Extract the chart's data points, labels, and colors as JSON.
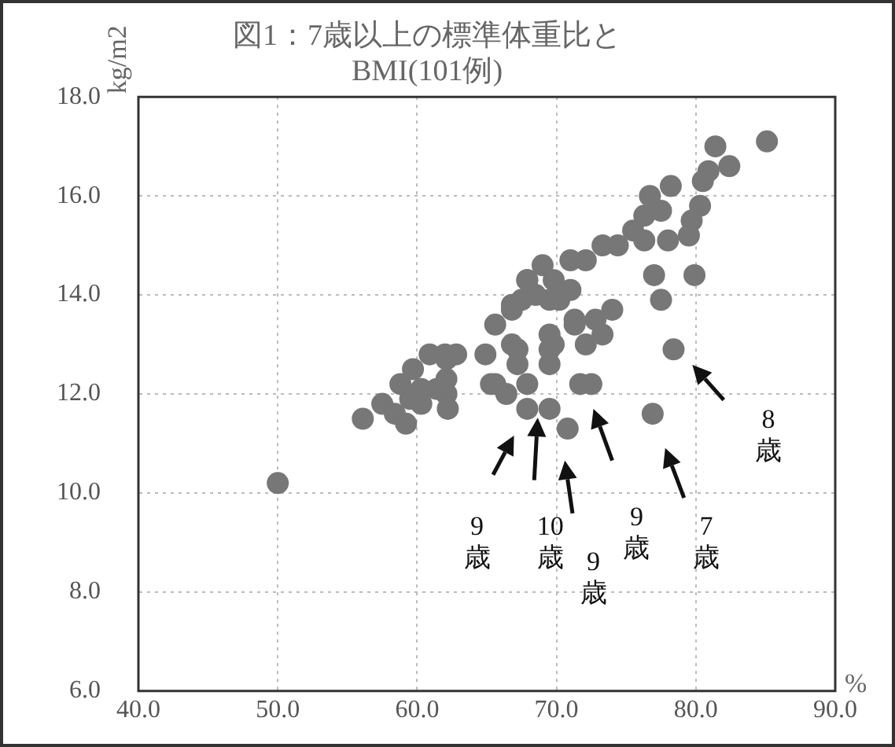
{
  "chart_data": {
    "type": "scatter",
    "title": "図1：7歳以上の標準体重比と\nBMI(101例)",
    "xlabel": "%",
    "ylabel": "kg/m2",
    "x": [
      50,
      85.1,
      81.4,
      82.4,
      80.9,
      80.5,
      78.2,
      76.7,
      80.3,
      79.7,
      79.5,
      77.5,
      76.3,
      75.5,
      78,
      76.3,
      74.4,
      77,
      79.9,
      77.5,
      78.4,
      76.9,
      73.3,
      72.1,
      71,
      69,
      69.8,
      67.9,
      71,
      69.5,
      67.5,
      66.8,
      74,
      72.8,
      71.3,
      69.5,
      73.3,
      72.1,
      69.8,
      66.8,
      64.9,
      69.5,
      67.2,
      71.7,
      67.9,
      65.3,
      66.4,
      67.9,
      69.5,
      70.8,
      62.1,
      62.1,
      62.1,
      56.1,
      57.5,
      58.8,
      59.7,
      60.9,
      62,
      62.8,
      59.2,
      60.3,
      62.2,
      61.4,
      60.3,
      59.5,
      58.4,
      65.6,
      66.8,
      67.9,
      70.2,
      67.2,
      69.5,
      72.5,
      71.3,
      65.6,
      68.5
    ],
    "values": [
      10.2,
      17.1,
      17,
      16.6,
      16.5,
      16.3,
      16.2,
      16,
      15.8,
      15.5,
      15.2,
      15.7,
      15.6,
      15.3,
      15.1,
      15.1,
      15,
      14.4,
      14.4,
      13.9,
      12.9,
      11.6,
      15,
      14.7,
      14.7,
      14.6,
      14.3,
      14.3,
      14.1,
      13.9,
      13.9,
      13.7,
      13.7,
      13.5,
      13.4,
      13.2,
      13.2,
      13,
      13,
      13,
      12.8,
      12.6,
      12.6,
      12.2,
      12.2,
      12.2,
      12,
      11.7,
      11.7,
      11.3,
      12.7,
      12.3,
      12,
      11.5,
      11.8,
      12.2,
      12.5,
      12.8,
      12.8,
      12.8,
      11.4,
      11.8,
      11.7,
      12.1,
      12.1,
      11.9,
      11.6,
      13.4,
      13.8,
      14.3,
      13.9,
      12.9,
      12.9,
      12.2,
      13.5,
      12.2,
      14
    ],
    "color": "#777777",
    "marker": "circle",
    "xlim": [
      40,
      90
    ],
    "xticks": [
      {
        "value": 40,
        "label": "40.0"
      },
      {
        "value": 50,
        "label": "50.0"
      },
      {
        "value": 60,
        "label": "60.0"
      },
      {
        "value": 70,
        "label": "70.0"
      },
      {
        "value": 80,
        "label": "80.0"
      },
      {
        "value": 90,
        "label": "90.0"
      }
    ],
    "ylim": [
      6,
      18
    ],
    "yticks": [
      {
        "value": 6,
        "label": "6.0"
      },
      {
        "value": 8,
        "label": "8.0"
      },
      {
        "value": 10,
        "label": "10.0"
      },
      {
        "value": 12,
        "label": "12.0"
      },
      {
        "value": 14,
        "label": "14.0"
      },
      {
        "value": 16,
        "label": "16.0"
      },
      {
        "value": 18,
        "label": "18.0"
      }
    ],
    "grid": true,
    "annotations": [
      "9\n歳",
      "10\n歳",
      "9\n歳",
      "9\n歳",
      "7\n歳",
      "8\n歳"
    ]
  }
}
